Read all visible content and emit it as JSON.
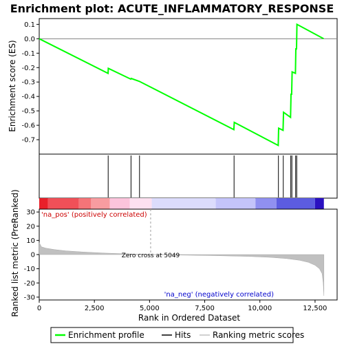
{
  "chart_data": {
    "type": "line",
    "title": "Enrichment plot: ACUTE_INFLAMMATORY_RESPONSE",
    "es_panel": {
      "ylabel": "Enrichment score (ES)",
      "ylim": [
        -0.8,
        0.14
      ],
      "yticks": [
        0.1,
        0.0,
        -0.1,
        -0.2,
        -0.3,
        -0.4,
        -0.5,
        -0.6,
        -0.7
      ],
      "ytick_labels": [
        "0.1",
        "0.0",
        "-0.1",
        "-0.2",
        "-0.3",
        "-0.4",
        "-0.5",
        "-0.6",
        "-0.7"
      ],
      "series": [
        {
          "name": "Enrichment profile",
          "color": "#00ff00",
          "points": [
            [
              0,
              0.0
            ],
            [
              3120,
              -0.24
            ],
            [
              3130,
              -0.205
            ],
            [
              4150,
              -0.28
            ],
            [
              4170,
              -0.275
            ],
            [
              4530,
              -0.295
            ],
            [
              4560,
              -0.297
            ],
            [
              8820,
              -0.63
            ],
            [
              8840,
              -0.58
            ],
            [
              10830,
              -0.74
            ],
            [
              10850,
              -0.62
            ],
            [
              11050,
              -0.635
            ],
            [
              11070,
              -0.51
            ],
            [
              11390,
              -0.545
            ],
            [
              11410,
              -0.385
            ],
            [
              11440,
              -0.385
            ],
            [
              11460,
              -0.23
            ],
            [
              11610,
              -0.24
            ],
            [
              11630,
              -0.07
            ],
            [
              11660,
              -0.07
            ],
            [
              11680,
              0.1
            ],
            [
              12890,
              0.0
            ]
          ]
        }
      ]
    },
    "hits": {
      "name": "Hits",
      "positions": [
        3125,
        4160,
        4545,
        8830,
        10840,
        11060,
        11400,
        11450,
        11620,
        11670
      ]
    },
    "ranked_panel": {
      "ylabel": "Ranked list metric (PreRanked)",
      "xlabel": "Rank in Ordered Dataset",
      "xlim": [
        0,
        13500
      ],
      "ylim": [
        -32,
        32
      ],
      "yticks": [
        30,
        20,
        10,
        0,
        -10,
        -20,
        -30
      ],
      "ytick_labels": [
        "30",
        "20",
        "10",
        "0",
        "-10",
        "-20",
        "-30"
      ],
      "xticks": [
        0,
        2500,
        5000,
        7500,
        10000,
        12500
      ],
      "xtick_labels": [
        "0",
        "2,500",
        "5,000",
        "7,500",
        "10,000",
        "12,500"
      ],
      "zero_cross": 5049,
      "zero_cross_label": "Zero cross at 5049",
      "pos_label": "'na_pos' (positively correlated)",
      "neg_label": "'na_neg' (negatively correlated)",
      "n_genes": 12900,
      "metric_curve": [
        [
          0,
          8.5
        ],
        [
          100,
          5.5
        ],
        [
          300,
          4.5
        ],
        [
          700,
          3.5
        ],
        [
          1200,
          2.6
        ],
        [
          2000,
          1.8
        ],
        [
          3000,
          1.0
        ],
        [
          4000,
          0.5
        ],
        [
          5049,
          0.0
        ],
        [
          6500,
          -0.4
        ],
        [
          8000,
          -0.8
        ],
        [
          9500,
          -1.3
        ],
        [
          10500,
          -2.0
        ],
        [
          11200,
          -2.8
        ],
        [
          11800,
          -4.0
        ],
        [
          12200,
          -5.5
        ],
        [
          12500,
          -7.5
        ],
        [
          12700,
          -10.0
        ],
        [
          12820,
          -13.5
        ],
        [
          12870,
          -20.0
        ],
        [
          12900,
          -29.0
        ]
      ],
      "series_name": "Ranking metric scores",
      "color": "#c0c0c0"
    },
    "colorbar": {
      "segments": [
        {
          "from": 0,
          "to": 400,
          "color": "#e8202a"
        },
        {
          "from": 400,
          "to": 1800,
          "color": "#f05058"
        },
        {
          "from": 1800,
          "to": 2350,
          "color": "#f47478"
        },
        {
          "from": 2350,
          "to": 3200,
          "color": "#f89ca0"
        },
        {
          "from": 3200,
          "to": 4100,
          "color": "#fcc4dc"
        },
        {
          "from": 4100,
          "to": 5100,
          "color": "#fde0f0"
        },
        {
          "from": 5100,
          "to": 8000,
          "color": "#dcdcfc"
        },
        {
          "from": 8000,
          "to": 9800,
          "color": "#c4c4fa"
        },
        {
          "from": 9800,
          "to": 10750,
          "color": "#9090f0"
        },
        {
          "from": 10750,
          "to": 12500,
          "color": "#5c5ce0"
        },
        {
          "from": 12500,
          "to": 12900,
          "color": "#2a10c0"
        }
      ]
    },
    "legend": {
      "placement": "bottom",
      "items": [
        {
          "label": "Enrichment profile",
          "color": "#00ff00"
        },
        {
          "label": "Hits",
          "color": "#000000"
        },
        {
          "label": "Ranking metric scores",
          "color": "#c0c0c0"
        }
      ]
    }
  }
}
